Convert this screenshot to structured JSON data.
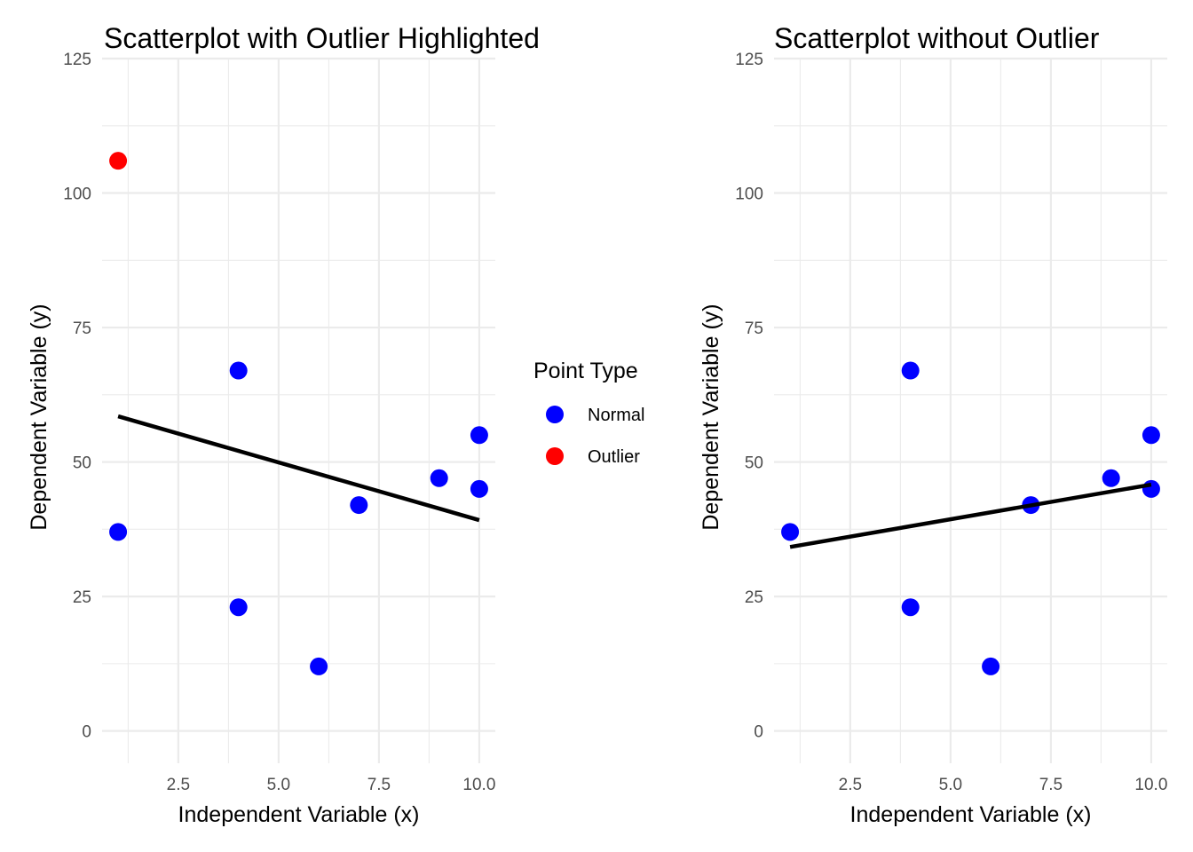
{
  "chart_data": [
    {
      "type": "scatter",
      "title": "Scatterplot with Outlier Highlighted",
      "xlabel": "Independent Variable (x)",
      "ylabel": "Dependent Variable (y)",
      "xlim": [
        0.6,
        10.4
      ],
      "ylim": [
        -6,
        125
      ],
      "xticks": [
        2.5,
        5.0,
        7.5,
        10.0
      ],
      "xtick_labels": [
        "2.5",
        "5.0",
        "7.5",
        "10.0"
      ],
      "yticks": [
        0,
        25,
        50,
        75,
        100,
        125
      ],
      "ytick_labels": [
        "0",
        "25",
        "50",
        "75",
        "100",
        "125"
      ],
      "series": [
        {
          "name": "Normal",
          "color": "#0000ff",
          "x": [
            1,
            4,
            4,
            6,
            7,
            9,
            10,
            10
          ],
          "y": [
            37,
            67,
            23,
            12,
            42,
            47,
            55,
            45
          ]
        },
        {
          "name": "Outlier",
          "color": "#ff0000",
          "x": [
            1
          ],
          "y": [
            106
          ]
        }
      ],
      "fit_line": {
        "x": [
          1,
          10
        ],
        "y": [
          58.5,
          39.2
        ],
        "color": "#000000"
      }
    },
    {
      "type": "scatter",
      "title": "Scatterplot without Outlier",
      "xlabel": "Independent Variable (x)",
      "ylabel": "Dependent Variable (y)",
      "xlim": [
        0.6,
        10.4
      ],
      "ylim": [
        -6,
        125
      ],
      "xticks": [
        2.5,
        5.0,
        7.5,
        10.0
      ],
      "xtick_labels": [
        "2.5",
        "5.0",
        "7.5",
        "10.0"
      ],
      "yticks": [
        0,
        25,
        50,
        75,
        100,
        125
      ],
      "ytick_labels": [
        "0",
        "25",
        "50",
        "75",
        "100",
        "125"
      ],
      "series": [
        {
          "name": "Normal",
          "color": "#0000ff",
          "x": [
            1,
            4,
            4,
            6,
            7,
            9,
            10,
            10
          ],
          "y": [
            37,
            67,
            23,
            12,
            42,
            47,
            55,
            45
          ]
        }
      ],
      "fit_line": {
        "x": [
          1,
          10
        ],
        "y": [
          34.2,
          45.8
        ],
        "color": "#000000"
      }
    }
  ],
  "legend": {
    "title": "Point Type",
    "items": [
      {
        "label": "Normal",
        "color": "#0000ff"
      },
      {
        "label": "Outlier",
        "color": "#ff0000"
      }
    ]
  }
}
